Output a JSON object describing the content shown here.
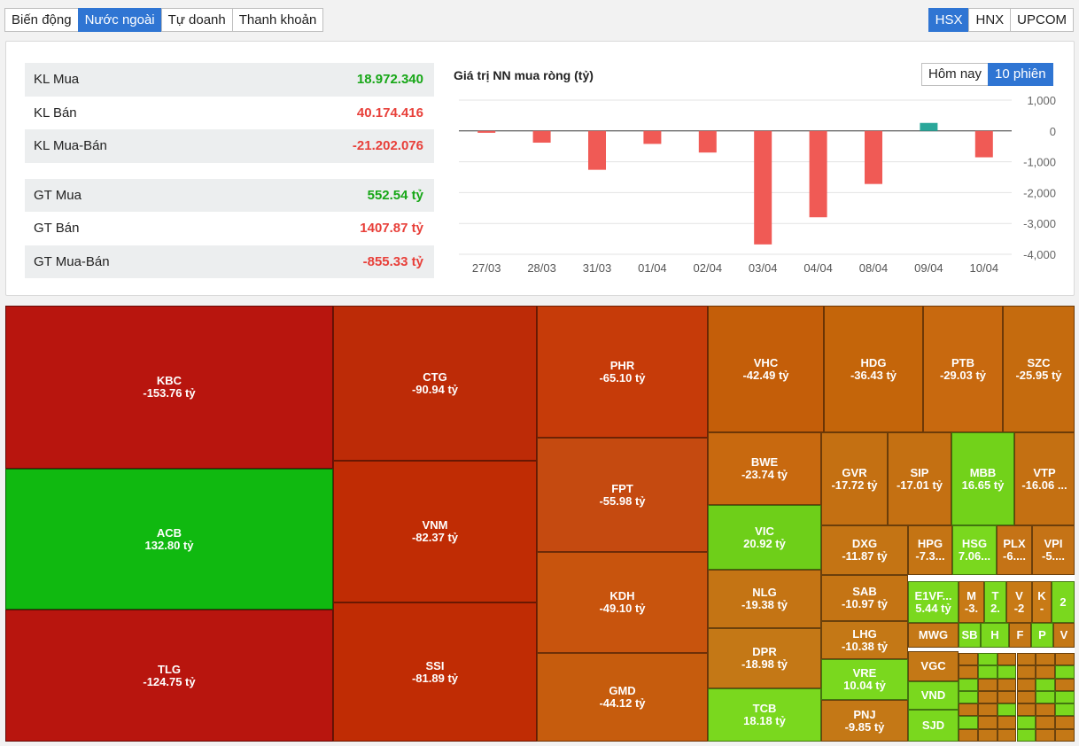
{
  "tabs": {
    "t1": "Biến động",
    "t2": "Nước ngoài",
    "t3": "Tự doanh",
    "t4": "Thanh khoản"
  },
  "exchanges": {
    "hsx": "HSX",
    "hnx": "HNX",
    "upcom": "UPCOM"
  },
  "stats": {
    "kl_mua_label": "KL Mua",
    "kl_mua": "18.972.340",
    "kl_ban_label": "KL Bán",
    "kl_ban": "40.174.416",
    "kl_mb_label": "KL Mua-Bán",
    "kl_mb": "-21.202.076",
    "gt_mua_label": "GT Mua",
    "gt_mua": "552.54 tỷ",
    "gt_ban_label": "GT Bán",
    "gt_ban": "1407.87 tỷ",
    "gt_mb_label": "GT Mua-Bán",
    "gt_mb": "-855.33 tỷ"
  },
  "chart_title": "Giá trị NN mua ròng (tỷ)",
  "range": {
    "today": "Hôm nay",
    "ten": "10 phiên"
  },
  "colors": {
    "positive": "#2aa79a",
    "negative": "#f05a55",
    "accent": "#2f75d3",
    "up": "#17a717",
    "down": "#e8403a"
  },
  "chart_data": {
    "type": "bar",
    "categories": [
      "27/03",
      "28/03",
      "31/03",
      "01/04",
      "02/04",
      "03/04",
      "04/04",
      "08/04",
      "09/04",
      "10/04"
    ],
    "values": [
      -60,
      -380,
      -1260,
      -420,
      -700,
      -3680,
      -2800,
      -1720,
      260,
      -855
    ],
    "ylim": [
      -4000,
      1000
    ],
    "yticks": [
      1000,
      0,
      -1000,
      -2000,
      -3000,
      -4000
    ],
    "ytick_labels": [
      "1,000",
      "0",
      "-1,000",
      "-2,000",
      "-3,000",
      "-4,000"
    ]
  },
  "treemap": [
    {
      "s": "KBC",
      "v": "-153.76 tỷ"
    },
    {
      "s": "ACB",
      "v": "132.80 tỷ"
    },
    {
      "s": "TLG",
      "v": "-124.75 tỷ"
    },
    {
      "s": "CTG",
      "v": "-90.94 tỷ"
    },
    {
      "s": "VNM",
      "v": "-82.37 tỷ"
    },
    {
      "s": "SSI",
      "v": "-81.89 tỷ"
    },
    {
      "s": "PHR",
      "v": "-65.10 tỷ"
    },
    {
      "s": "FPT",
      "v": "-55.98 tỷ"
    },
    {
      "s": "KDH",
      "v": "-49.10 tỷ"
    },
    {
      "s": "GMD",
      "v": "-44.12 tỷ"
    },
    {
      "s": "VHC",
      "v": "-42.49 tỷ"
    },
    {
      "s": "HDG",
      "v": "-36.43 tỷ"
    },
    {
      "s": "PTB",
      "v": "-29.03 tỷ"
    },
    {
      "s": "SZC",
      "v": "-25.95 tỷ"
    },
    {
      "s": "BWE",
      "v": "-23.74 tỷ"
    },
    {
      "s": "GVR",
      "v": "-17.72 tỷ"
    },
    {
      "s": "SIP",
      "v": "-17.01 tỷ"
    },
    {
      "s": "MBB",
      "v": "16.65 tỷ"
    },
    {
      "s": "VTP",
      "v": "-16.06 ..."
    },
    {
      "s": "VIC",
      "v": "20.92 tỷ"
    },
    {
      "s": "DXG",
      "v": "-11.87 tỷ"
    },
    {
      "s": "HPG",
      "v": "-7.3..."
    },
    {
      "s": "HSG",
      "v": "7.06..."
    },
    {
      "s": "PLX",
      "v": "-6...."
    },
    {
      "s": "VPI",
      "v": "-5...."
    },
    {
      "s": "NLG",
      "v": "-19.38 tỷ"
    },
    {
      "s": "SAB",
      "v": "-10.97 tỷ"
    },
    {
      "s": "E1VF...",
      "v": "5.44 tỷ"
    },
    {
      "s": "M",
      "v": "-3."
    },
    {
      "s": "T",
      "v": "2."
    },
    {
      "s": "V",
      "v": "-2"
    },
    {
      "s": "K",
      "v": "-"
    },
    {
      "s": "",
      "v": "2"
    },
    {
      "s": "LHG",
      "v": "-10.38 tỷ"
    },
    {
      "s": "MWG",
      "v": ""
    },
    {
      "s": "SB",
      "v": ""
    },
    {
      "s": "H",
      "v": ""
    },
    {
      "s": "F",
      "v": ""
    },
    {
      "s": "P",
      "v": ""
    },
    {
      "s": "V",
      "v": ""
    },
    {
      "s": "DPR",
      "v": "-18.98 tỷ"
    },
    {
      "s": "VRE",
      "v": "10.04 tỷ"
    },
    {
      "s": "VGC",
      "v": ""
    },
    {
      "s": "TCB",
      "v": "18.18 tỷ"
    },
    {
      "s": "PNJ",
      "v": "-9.85 tỷ"
    },
    {
      "s": "VND",
      "v": ""
    },
    {
      "s": "SJD",
      "v": ""
    }
  ]
}
